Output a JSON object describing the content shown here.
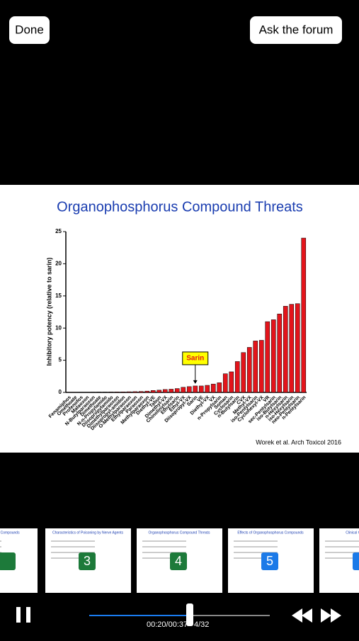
{
  "header": {
    "done": "Done",
    "ask": "Ask the forum"
  },
  "chart_data": {
    "type": "bar",
    "title": "Organophosphorus Compound Threats",
    "ylabel": "Inhibitory potency (relative to sarin)",
    "categories": [
      "Fenamiphos",
      "Omethoate",
      "Profenofos",
      "Malaoxon",
      "N-Butylparaoxon",
      "Dimethoate",
      "N-n-Propylamido",
      "Diisopropylamido",
      "Dimethylparaoxon",
      "Diisopropyl-amidon",
      "O-Methylparaoxon",
      "Ethylparaoxon",
      "Paraoxon",
      "Methylparaoxon",
      "Diethyl-VE",
      "Tabun",
      "Dimethyl-VX",
      "Chinolinylsarin",
      "Ethylsarin",
      "Ethyl-VX",
      "Diisopropyl-VX",
      "Sarin",
      "VE",
      "Diethyl-VX",
      "VX",
      "n-Propylsarin",
      "Soman",
      "Cyclosarin",
      "n-Butylsarin",
      "CVX",
      "Methyl-VX",
      "iso-Pentylsarin",
      "Cyclohexyl-VX",
      "VR",
      "sec-Pentylsarin",
      "iso-Butylsarin",
      "n-Hexylsarin",
      "iso-Hexylsarin",
      "neo-Pentylsarin",
      "n-Pentylsarin"
    ],
    "values": [
      0.02,
      0.02,
      0.03,
      0.03,
      0.04,
      0.05,
      0.05,
      0.06,
      0.07,
      0.08,
      0.1,
      0.12,
      0.15,
      0.2,
      0.3,
      0.35,
      0.45,
      0.5,
      0.6,
      0.8,
      0.9,
      1.0,
      1.0,
      1.1,
      1.3,
      1.5,
      2.9,
      3.2,
      4.8,
      6.2,
      7.0,
      8.0,
      8.1,
      11.0,
      11.3,
      12.2,
      13.4,
      13.7,
      13.8,
      24.0
    ],
    "color": "#e3141b",
    "ylim": [
      0,
      25
    ],
    "yticks": [
      0,
      5,
      10,
      15,
      20,
      25
    ],
    "annotation": "Sarin"
  },
  "citation": "Worek et al. Arch Toxicol 2016",
  "thumbnails": [
    {
      "title": "Organophosphorus Compounds",
      "number": null
    },
    {
      "title": "Characteristics of Poisoning by Nerve Agents",
      "number": 3
    },
    {
      "title": "Organophosphorus Compound Threats",
      "number": 4
    },
    {
      "title": "Effects of Organophosphorus Compounds",
      "number": 5
    },
    {
      "title": "Clinical Challenge of",
      "number": null
    }
  ],
  "player": {
    "time": "00:20/00:37",
    "counter": "4/32"
  }
}
